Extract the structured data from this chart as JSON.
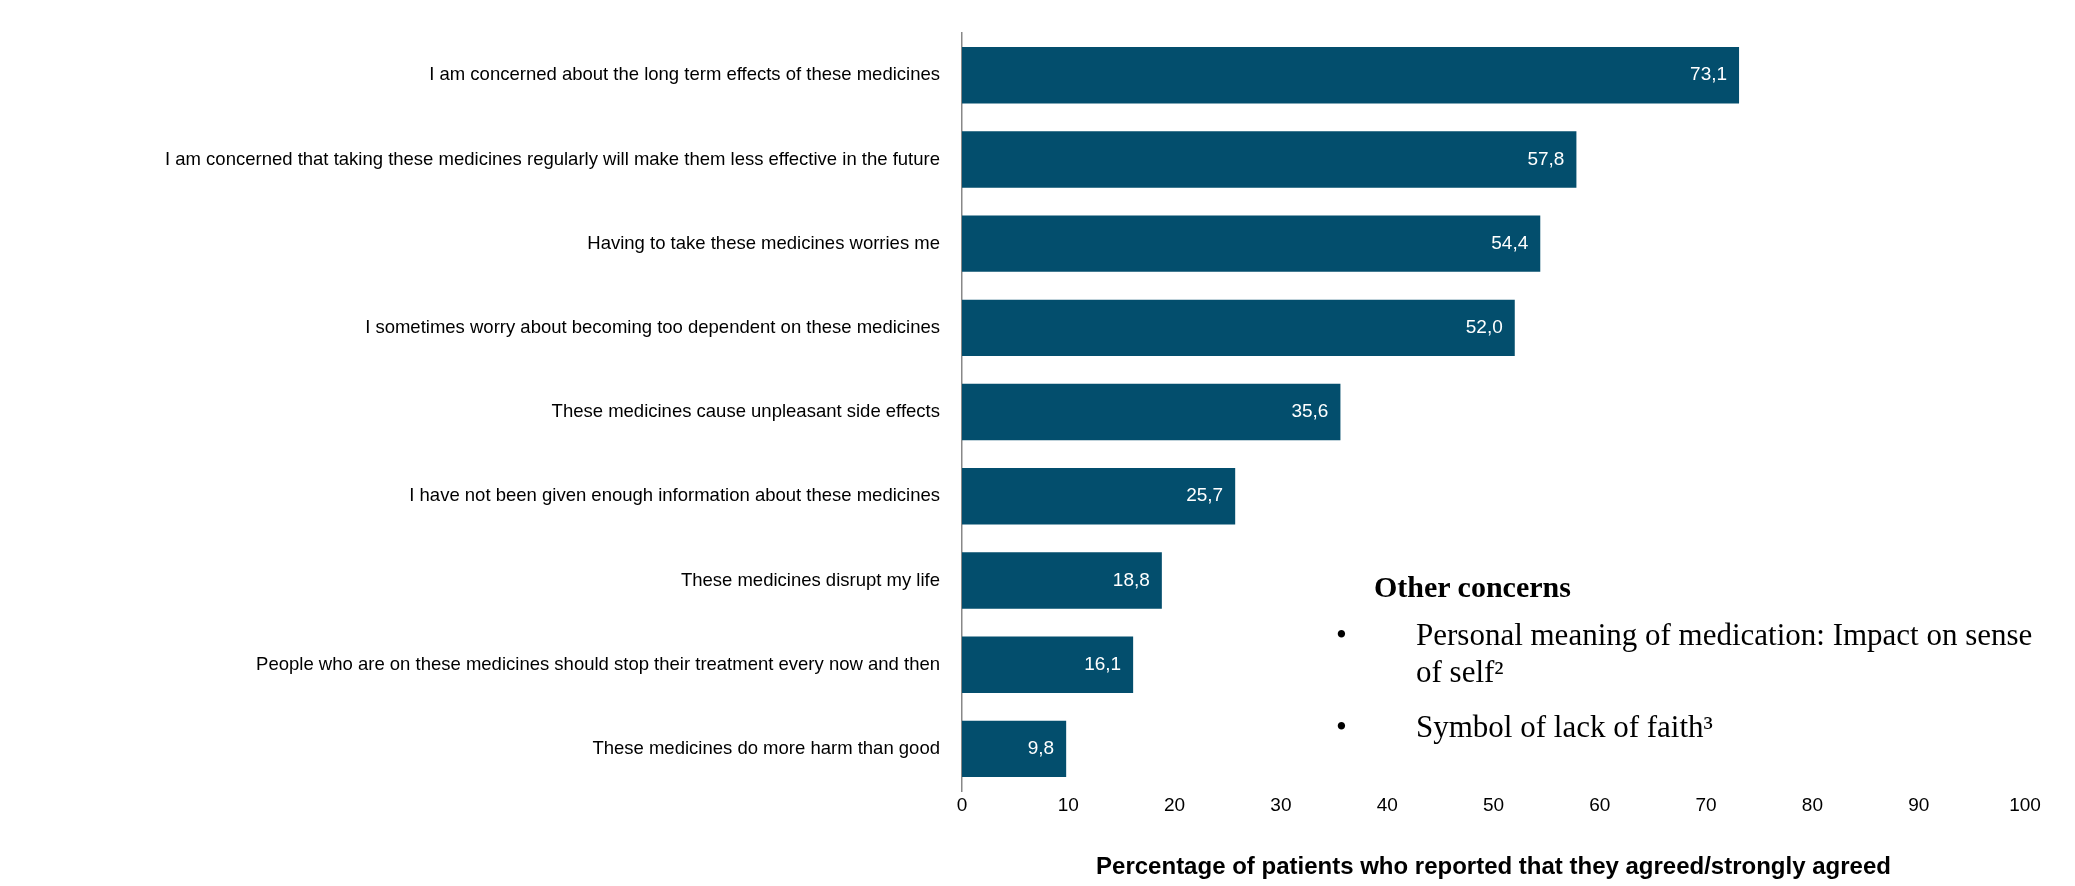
{
  "chart_data": {
    "type": "bar",
    "orientation": "horizontal",
    "xlabel": "Percentage of patients who reported that they agreed/strongly agreed",
    "categories": [
      "I am concerned about the long term effects of these medicines",
      "I am concerned that taking these medicines regularly will make them less effective in the future",
      "Having to take these medicines worries me",
      "I sometimes worry about becoming too dependent on these medicines",
      "These medicines cause unpleasant side effects",
      "I have not been given enough information about these medicines",
      "These medicines disrupt my life",
      "People who are on these medicines should stop their treatment every now and then",
      "These medicines do more harm than good"
    ],
    "values": [
      73.1,
      57.8,
      54.4,
      52.0,
      35.6,
      25.7,
      18.8,
      16.1,
      9.8
    ],
    "value_labels": [
      "73,1",
      "57,8",
      "54,4",
      "52,0",
      "35,6",
      "25,7",
      "18,8",
      "16,1",
      "9,8"
    ],
    "color": "#034e6d",
    "xlim": [
      0,
      100
    ],
    "xticks": [
      0,
      10,
      20,
      30,
      40,
      50,
      60,
      70,
      80,
      90,
      100
    ],
    "grid": false,
    "legend": false,
    "annotations": [
      "Other concerns",
      "•",
      "Personal meaning of medication: Impact on sense of self²",
      "•",
      "Symbol of lack of faith³"
    ]
  }
}
